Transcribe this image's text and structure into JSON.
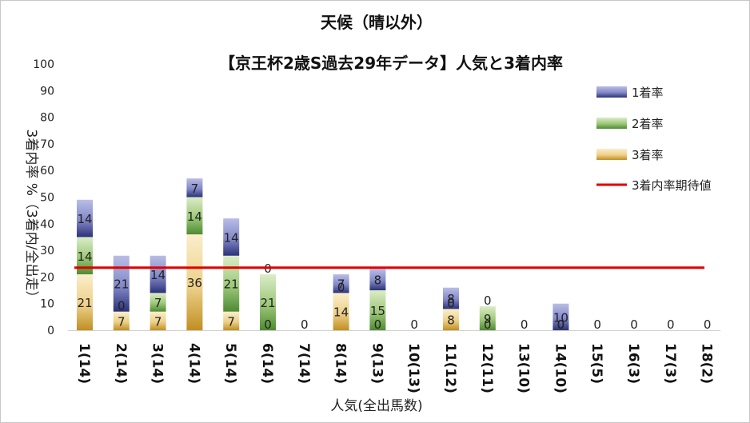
{
  "chart_data": {
    "type": "bar",
    "stacked": true,
    "title": "天候（晴以外）",
    "subtitle": "【京王杯2歳S過去29年データ】人気と3着内率",
    "xlabel": "人気(全出馬数)",
    "ylabel": "3着内率 %（3着内/全出走）",
    "ylim": [
      0,
      100
    ],
    "yticks": [
      0,
      10,
      20,
      30,
      40,
      50,
      60,
      70,
      80,
      90,
      100
    ],
    "categories": [
      "1(14)",
      "2(14)",
      "3(14)",
      "4(14)",
      "5(14)",
      "6(14)",
      "7(14)",
      "8(14)",
      "9(13)",
      "10(13)",
      "11(12)",
      "12(11)",
      "13(10)",
      "14(10)",
      "15(5)",
      "16(3)",
      "17(3)",
      "18(2)"
    ],
    "series": [
      {
        "name": "3着率",
        "color": "#c9a23c",
        "values": [
          21,
          7,
          7,
          36,
          7,
          0,
          0,
          14,
          0,
          0,
          8,
          0,
          0,
          0,
          0,
          0,
          0,
          0
        ],
        "labels": [
          "21",
          "7",
          "7",
          "36",
          "7",
          "0",
          "0",
          "14",
          "0",
          "0",
          "8",
          "0",
          "0",
          "0",
          "0",
          "0",
          "0",
          "0"
        ]
      },
      {
        "name": "2着率",
        "color": "#5a9a3a",
        "values": [
          14,
          0,
          7,
          14,
          21,
          21,
          0,
          0,
          15,
          0,
          0,
          9,
          0,
          0,
          0,
          0,
          0,
          0
        ],
        "labels": [
          "14",
          "0",
          "7",
          "14",
          "21",
          "21",
          "",
          "0",
          "15",
          "",
          "0",
          "9",
          "",
          "0",
          "",
          "",
          "",
          ""
        ]
      },
      {
        "name": "1着率",
        "color": "#4a56a8",
        "values": [
          14,
          21,
          14,
          7,
          14,
          0,
          0,
          7,
          8,
          0,
          8,
          0,
          0,
          10,
          0,
          0,
          0,
          0
        ],
        "labels": [
          "14",
          "21",
          "14",
          "7",
          "14",
          "0",
          "",
          "7",
          "8",
          "",
          "8",
          "0",
          "",
          "10",
          "",
          "",
          "",
          ""
        ]
      }
    ],
    "expected_line": {
      "name": "3着内率期待値",
      "value": 23.5,
      "color": "#e00000"
    },
    "legend_position": "right",
    "grid": false
  }
}
